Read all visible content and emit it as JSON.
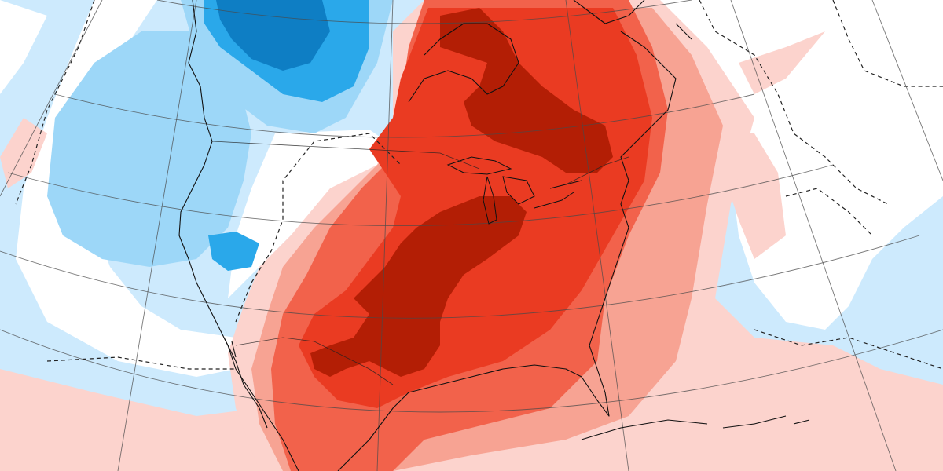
{
  "map": {
    "projection": "conic",
    "field": "anomaly",
    "colors": {
      "background": "#ffffff",
      "cold_1": "#cdeafd",
      "cold_2": "#9dd7f8",
      "cold_3": "#2aa8ea",
      "cold_4": "#0e7ec4",
      "warm_1": "#fcd3cd",
      "warm_2": "#f7a393",
      "warm_3": "#f2624b",
      "warm_4": "#ea3b22",
      "warm_5": "#b31e05"
    },
    "grid": true,
    "coastlines": true,
    "zero_contour_style": "dashed",
    "regions": [
      {
        "name": "western-cold-pool",
        "level": "cold_2"
      },
      {
        "name": "northwest-cold-core",
        "level": "cold_4"
      },
      {
        "name": "eastern-heat-dome",
        "level": "warm_4"
      },
      {
        "name": "southern-plains-heat-core",
        "level": "warm_5"
      },
      {
        "name": "great-lakes-heat-core",
        "level": "warm_5"
      },
      {
        "name": "atlantic-warm-tongue",
        "level": "warm_2"
      },
      {
        "name": "gulf-warm-anomaly",
        "level": "warm_3"
      },
      {
        "name": "east-pacific-warm-band",
        "level": "warm_1"
      }
    ]
  }
}
